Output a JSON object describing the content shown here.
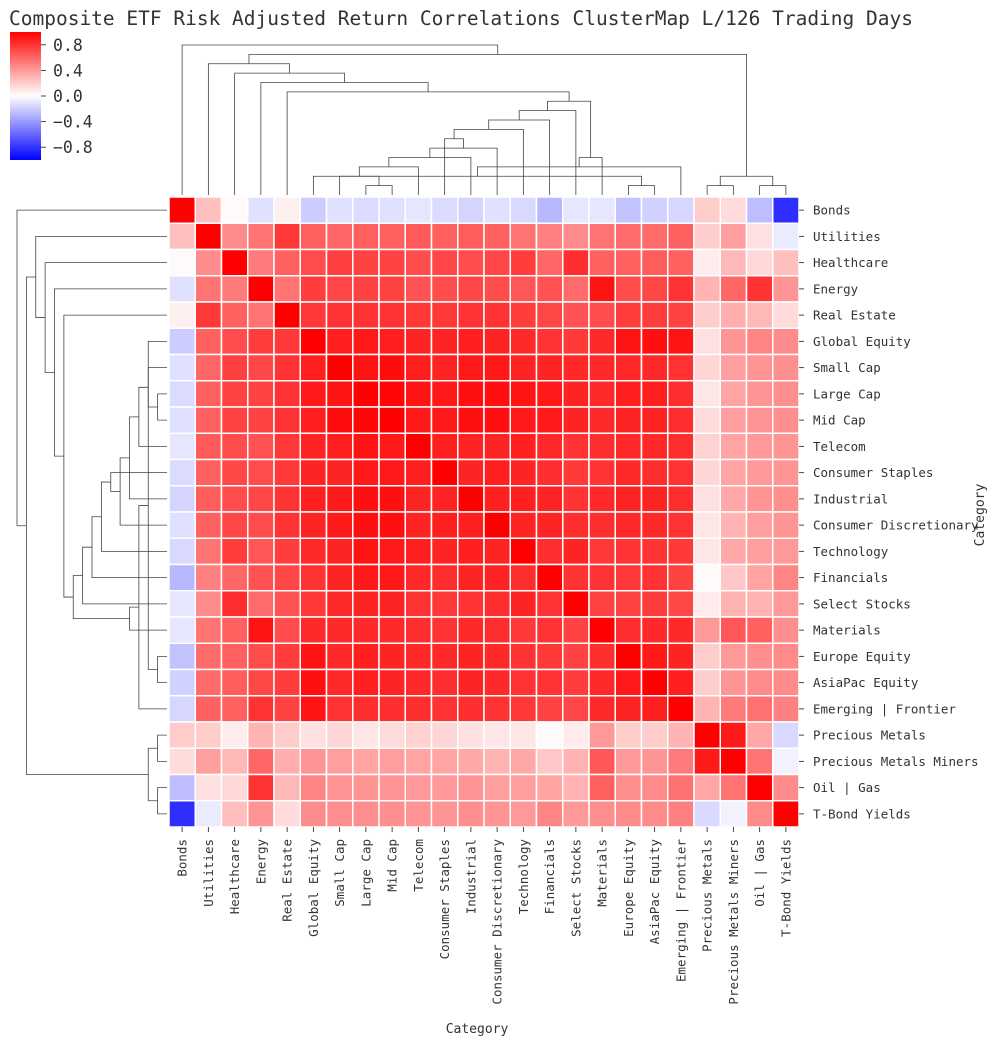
{
  "chart_data": {
    "type": "heatmap",
    "title": "Composite ETF Risk Adjusted Return Correlations ClusterMap L/126 Trading Days",
    "xlabel": "Category",
    "ylabel": "Category",
    "colormap": "bwr",
    "vmin": -1.0,
    "vmax": 1.0,
    "colorbar_ticks": [
      0.8,
      0.4,
      0.0,
      -0.4,
      -0.8
    ],
    "colorbar_tick_labels": [
      "0.8",
      "0.4",
      "0.0",
      "−0.4",
      "−0.8"
    ],
    "categories": [
      "Bonds",
      "Utilities",
      "Healthcare",
      "Energy",
      "Real Estate",
      "Global Equity",
      "Small Cap",
      "Large Cap",
      "Mid Cap",
      "Telecom",
      "Consumer Staples",
      "Industrial",
      "Consumer Discretionary",
      "Technology",
      "Financials",
      "Select Stocks",
      "Materials",
      "Europe Equity",
      "AsiaPac Equity",
      "Emerging | Frontier",
      "Precious Metals",
      "Precious Metals Miners",
      "Oil | Gas",
      "T-Bond Yields"
    ],
    "matrix": [
      [
        1.0,
        0.25,
        0.02,
        -0.12,
        0.06,
        -0.2,
        -0.12,
        -0.14,
        -0.12,
        -0.1,
        -0.14,
        -0.17,
        -0.12,
        -0.15,
        -0.28,
        -0.1,
        -0.1,
        -0.24,
        -0.18,
        -0.16,
        0.2,
        0.14,
        -0.26,
        -0.82
      ],
      [
        0.25,
        1.0,
        0.45,
        0.55,
        0.78,
        0.62,
        0.6,
        0.62,
        0.62,
        0.65,
        0.62,
        0.64,
        0.62,
        0.55,
        0.5,
        0.45,
        0.55,
        0.58,
        0.58,
        0.62,
        0.2,
        0.38,
        0.12,
        -0.08
      ],
      [
        0.02,
        0.45,
        1.0,
        0.52,
        0.62,
        0.7,
        0.75,
        0.74,
        0.74,
        0.7,
        0.72,
        0.7,
        0.72,
        0.76,
        0.6,
        0.82,
        0.62,
        0.62,
        0.64,
        0.62,
        0.07,
        0.28,
        0.15,
        0.25
      ],
      [
        -0.12,
        0.55,
        0.52,
        1.0,
        0.55,
        0.76,
        0.72,
        0.74,
        0.74,
        0.68,
        0.7,
        0.72,
        0.7,
        0.66,
        0.68,
        0.58,
        0.92,
        0.7,
        0.72,
        0.8,
        0.3,
        0.6,
        0.8,
        0.42
      ],
      [
        0.06,
        0.78,
        0.62,
        0.55,
        1.0,
        0.78,
        0.8,
        0.8,
        0.8,
        0.78,
        0.78,
        0.8,
        0.8,
        0.76,
        0.72,
        0.68,
        0.7,
        0.76,
        0.76,
        0.74,
        0.2,
        0.32,
        0.28,
        0.14
      ],
      [
        -0.2,
        0.62,
        0.7,
        0.76,
        0.78,
        1.0,
        0.88,
        0.9,
        0.88,
        0.86,
        0.86,
        0.88,
        0.86,
        0.84,
        0.8,
        0.78,
        0.84,
        0.92,
        0.94,
        0.92,
        0.12,
        0.42,
        0.48,
        0.45
      ],
      [
        -0.12,
        0.6,
        0.75,
        0.72,
        0.8,
        0.88,
        1.0,
        0.92,
        0.95,
        0.88,
        0.86,
        0.9,
        0.9,
        0.86,
        0.86,
        0.84,
        0.84,
        0.84,
        0.84,
        0.8,
        0.16,
        0.38,
        0.42,
        0.44
      ],
      [
        -0.14,
        0.62,
        0.74,
        0.74,
        0.8,
        0.9,
        0.92,
        1.0,
        0.98,
        0.92,
        0.9,
        0.94,
        0.94,
        0.92,
        0.9,
        0.86,
        0.84,
        0.88,
        0.88,
        0.82,
        0.1,
        0.36,
        0.42,
        0.44
      ],
      [
        -0.12,
        0.62,
        0.74,
        0.74,
        0.8,
        0.88,
        0.95,
        0.98,
        1.0,
        0.9,
        0.9,
        0.94,
        0.94,
        0.9,
        0.9,
        0.86,
        0.84,
        0.86,
        0.86,
        0.82,
        0.14,
        0.38,
        0.42,
        0.44
      ],
      [
        -0.1,
        0.65,
        0.7,
        0.68,
        0.78,
        0.86,
        0.88,
        0.92,
        0.9,
        1.0,
        0.88,
        0.86,
        0.86,
        0.88,
        0.84,
        0.8,
        0.82,
        0.84,
        0.84,
        0.82,
        0.18,
        0.36,
        0.4,
        0.42
      ],
      [
        -0.14,
        0.62,
        0.72,
        0.7,
        0.78,
        0.86,
        0.86,
        0.9,
        0.9,
        0.88,
        1.0,
        0.86,
        0.88,
        0.86,
        0.82,
        0.78,
        0.8,
        0.84,
        0.82,
        0.8,
        0.16,
        0.36,
        0.4,
        0.42
      ],
      [
        -0.17,
        0.64,
        0.7,
        0.72,
        0.8,
        0.88,
        0.9,
        0.94,
        0.94,
        0.86,
        0.86,
        1.0,
        0.88,
        0.88,
        0.86,
        0.8,
        0.84,
        0.86,
        0.86,
        0.82,
        0.12,
        0.34,
        0.42,
        0.44
      ],
      [
        -0.12,
        0.62,
        0.72,
        0.7,
        0.8,
        0.86,
        0.9,
        0.94,
        0.94,
        0.86,
        0.88,
        0.88,
        1.0,
        0.86,
        0.86,
        0.82,
        0.82,
        0.84,
        0.84,
        0.8,
        0.1,
        0.3,
        0.38,
        0.42
      ],
      [
        -0.15,
        0.55,
        0.76,
        0.66,
        0.76,
        0.84,
        0.86,
        0.92,
        0.9,
        0.88,
        0.86,
        0.88,
        0.86,
        1.0,
        0.82,
        0.86,
        0.78,
        0.8,
        0.8,
        0.78,
        0.1,
        0.34,
        0.38,
        0.4
      ],
      [
        -0.28,
        0.5,
        0.6,
        0.68,
        0.72,
        0.8,
        0.86,
        0.9,
        0.9,
        0.84,
        0.82,
        0.86,
        0.86,
        0.82,
        1.0,
        0.8,
        0.8,
        0.78,
        0.8,
        0.74,
        0.02,
        0.22,
        0.36,
        0.48
      ],
      [
        -0.1,
        0.45,
        0.82,
        0.58,
        0.68,
        0.78,
        0.84,
        0.86,
        0.86,
        0.8,
        0.78,
        0.8,
        0.82,
        0.86,
        0.8,
        1.0,
        0.74,
        0.74,
        0.76,
        0.72,
        0.08,
        0.3,
        0.3,
        0.4
      ],
      [
        -0.1,
        0.55,
        0.62,
        0.92,
        0.7,
        0.84,
        0.84,
        0.84,
        0.84,
        0.82,
        0.8,
        0.84,
        0.82,
        0.78,
        0.8,
        0.74,
        1.0,
        0.82,
        0.84,
        0.84,
        0.4,
        0.66,
        0.62,
        0.44
      ],
      [
        -0.24,
        0.58,
        0.62,
        0.7,
        0.76,
        0.92,
        0.84,
        0.88,
        0.86,
        0.84,
        0.84,
        0.86,
        0.84,
        0.8,
        0.78,
        0.74,
        0.82,
        1.0,
        0.9,
        0.86,
        0.2,
        0.4,
        0.44,
        0.46
      ],
      [
        -0.18,
        0.58,
        0.64,
        0.72,
        0.76,
        0.94,
        0.84,
        0.88,
        0.86,
        0.84,
        0.82,
        0.86,
        0.84,
        0.8,
        0.8,
        0.76,
        0.84,
        0.9,
        1.0,
        0.88,
        0.2,
        0.42,
        0.46,
        0.46
      ],
      [
        -0.16,
        0.62,
        0.62,
        0.8,
        0.74,
        0.92,
        0.8,
        0.82,
        0.82,
        0.82,
        0.8,
        0.82,
        0.8,
        0.78,
        0.74,
        0.72,
        0.84,
        0.86,
        0.88,
        1.0,
        0.3,
        0.52,
        0.56,
        0.5
      ],
      [
        0.2,
        0.2,
        0.07,
        0.3,
        0.2,
        0.12,
        0.16,
        0.1,
        0.14,
        0.18,
        0.16,
        0.12,
        0.1,
        0.1,
        0.02,
        0.08,
        0.4,
        0.2,
        0.2,
        0.3,
        1.0,
        0.9,
        0.35,
        -0.15
      ],
      [
        0.14,
        0.38,
        0.28,
        0.6,
        0.32,
        0.42,
        0.38,
        0.36,
        0.38,
        0.36,
        0.36,
        0.34,
        0.3,
        0.34,
        0.22,
        0.3,
        0.66,
        0.4,
        0.42,
        0.52,
        0.9,
        1.0,
        0.55,
        -0.05
      ],
      [
        -0.26,
        0.12,
        0.15,
        0.8,
        0.28,
        0.48,
        0.42,
        0.42,
        0.42,
        0.4,
        0.4,
        0.42,
        0.38,
        0.38,
        0.36,
        0.3,
        0.62,
        0.44,
        0.46,
        0.56,
        0.35,
        0.55,
        1.0,
        0.46
      ],
      [
        -0.82,
        -0.08,
        0.25,
        0.42,
        0.14,
        0.45,
        0.44,
        0.44,
        0.44,
        0.42,
        0.42,
        0.44,
        0.42,
        0.4,
        0.48,
        0.4,
        0.44,
        0.46,
        0.46,
        0.5,
        -0.15,
        -0.05,
        0.46,
        1.0
      ]
    ],
    "dendrogram_merges": [
      [
        7,
        8
      ],
      [
        6,
        24
      ],
      [
        9,
        25
      ],
      [
        11,
        26
      ],
      [
        12,
        27
      ],
      [
        10,
        28
      ],
      [
        13,
        29
      ],
      [
        14,
        30
      ],
      [
        15,
        31
      ],
      [
        17,
        18
      ],
      [
        5,
        33
      ],
      [
        19,
        34
      ],
      [
        16,
        35
      ],
      [
        32,
        36
      ],
      [
        4,
        37
      ],
      [
        3,
        38
      ],
      [
        2,
        39
      ],
      [
        1,
        40
      ],
      [
        20,
        21
      ],
      [
        22,
        23
      ],
      [
        42,
        43
      ],
      [
        41,
        44
      ],
      [
        0,
        45
      ]
    ]
  }
}
